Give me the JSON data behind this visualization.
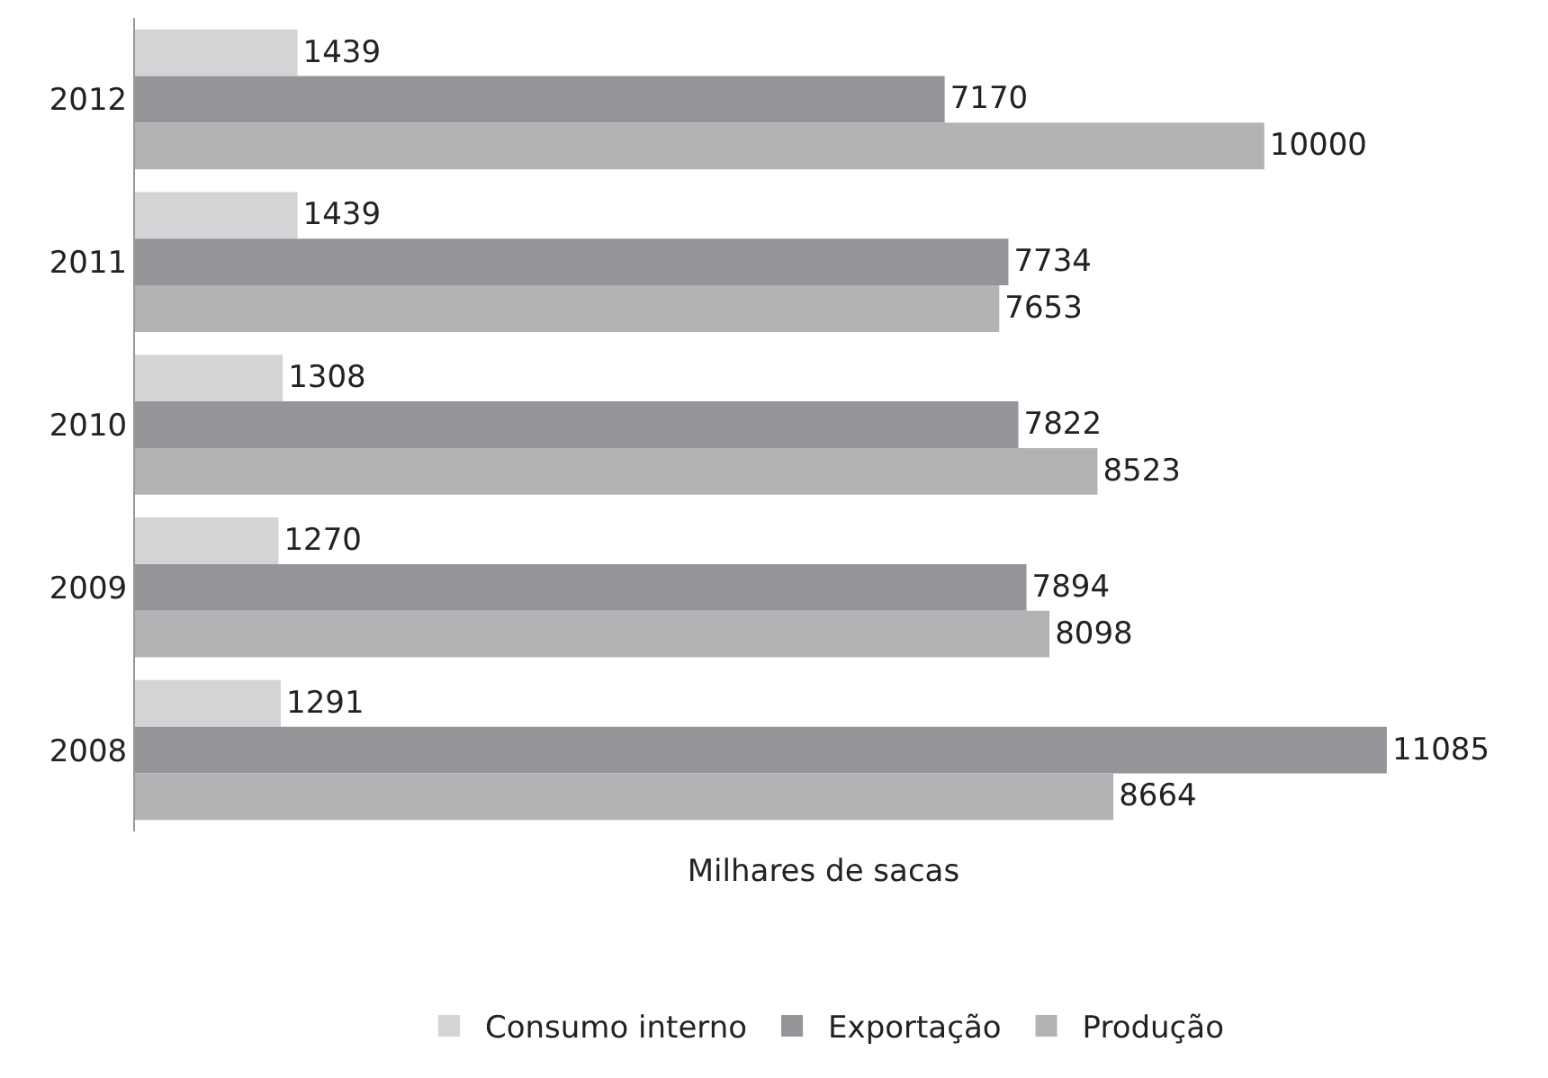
{
  "chart_data": {
    "type": "bar",
    "orientation": "horizontal",
    "xlabel": "Milhares de sacas",
    "categories": [
      "2012",
      "2011",
      "2010",
      "2009",
      "2008"
    ],
    "series": [
      {
        "name": "Consumo interno",
        "color": "#d4d4d6",
        "values": [
          1439,
          1439,
          1308,
          1270,
          1291
        ]
      },
      {
        "name": "Exportação",
        "color": "#939598",
        "values": [
          7170,
          7734,
          7822,
          7894,
          11085
        ]
      },
      {
        "name": "Produção",
        "color": "#b2b3b5",
        "values": [
          10000,
          7653,
          8523,
          8098,
          8664
        ]
      }
    ],
    "data_labels": true,
    "legend": "bottom"
  }
}
